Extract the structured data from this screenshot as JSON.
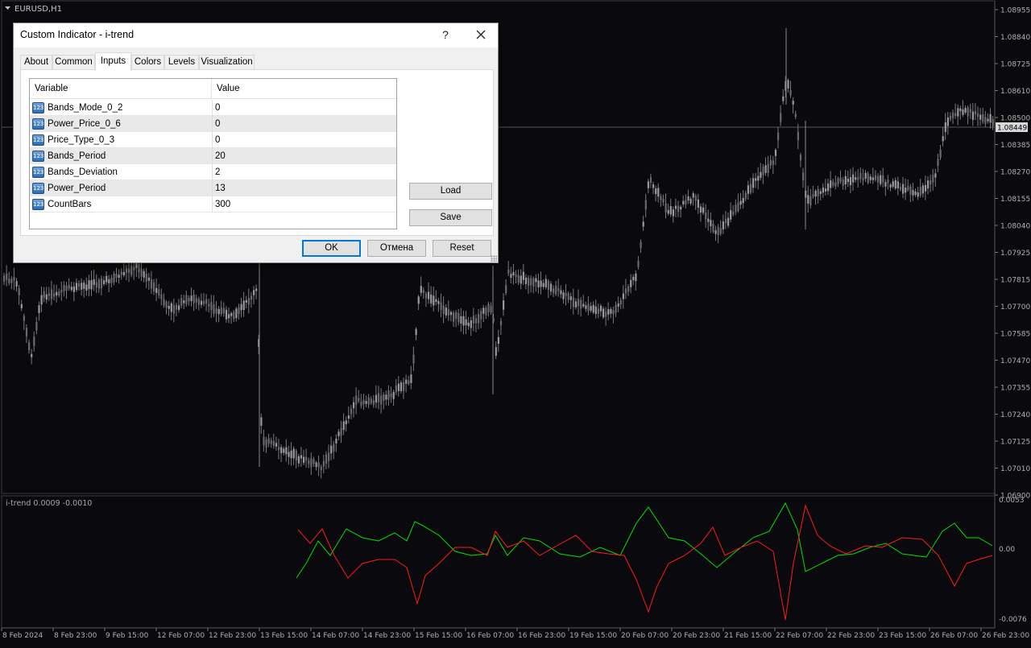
{
  "chart": {
    "symbol": "EURUSD,H1",
    "price_axis": [
      "1.08955",
      "1.08840",
      "1.08725",
      "1.08610",
      "1.08500",
      "1.08385",
      "1.08270",
      "1.08155",
      "1.08040",
      "1.07925",
      "1.07815",
      "1.07700",
      "1.07585",
      "1.07470",
      "1.07355",
      "1.07240",
      "1.07125",
      "1.07010",
      "1.06900"
    ],
    "current_price": "1.08449",
    "time_axis": [
      "8 Feb 2024",
      "8 Feb 23:00",
      "9 Feb 15:00",
      "12 Feb 07:00",
      "12 Feb 23:00",
      "13 Feb 15:00",
      "14 Feb 07:00",
      "14 Feb 23:00",
      "15 Feb 15:00",
      "16 Feb 07:00",
      "16 Feb 23:00",
      "19 Feb 15:00",
      "20 Feb 07:00",
      "20 Feb 23:00",
      "21 Feb 15:00",
      "22 Feb 07:00",
      "22 Feb 23:00",
      "23 Feb 15:00",
      "26 Feb 07:00",
      "26 Feb 23:00"
    ],
    "indicator_label": "i-trend 0.0009 -0.0010",
    "indicator_axis": [
      "0.0053",
      "0.00",
      "-0.0076"
    ],
    "colors": {
      "background": "#0a0a0e",
      "candles": "#8a8a8a",
      "grid_text": "#b0b0b0",
      "green_line": "#00e000",
      "red_line": "#ff1a1a",
      "price_badge": "#d8d8d8"
    }
  },
  "dialog": {
    "title": "Custom Indicator - i-trend",
    "help": "?",
    "tabs": [
      "About",
      "Common",
      "Inputs",
      "Colors",
      "Levels",
      "Visualization"
    ],
    "active_tab": "Inputs",
    "columns": {
      "variable": "Variable",
      "value": "Value"
    },
    "type_icon": "123",
    "params": [
      {
        "name": "Bands_Mode_0_2",
        "value": "0"
      },
      {
        "name": "Power_Price_0_6",
        "value": "0"
      },
      {
        "name": "Price_Type_0_3",
        "value": "0"
      },
      {
        "name": "Bands_Period",
        "value": "20"
      },
      {
        "name": "Bands_Deviation",
        "value": "2"
      },
      {
        "name": "Power_Period",
        "value": "13"
      },
      {
        "name": "CountBars",
        "value": "300"
      }
    ],
    "buttons": {
      "load": "Load",
      "save": "Save",
      "ok": "OK",
      "cancel": "Отмена",
      "reset": "Reset"
    }
  }
}
